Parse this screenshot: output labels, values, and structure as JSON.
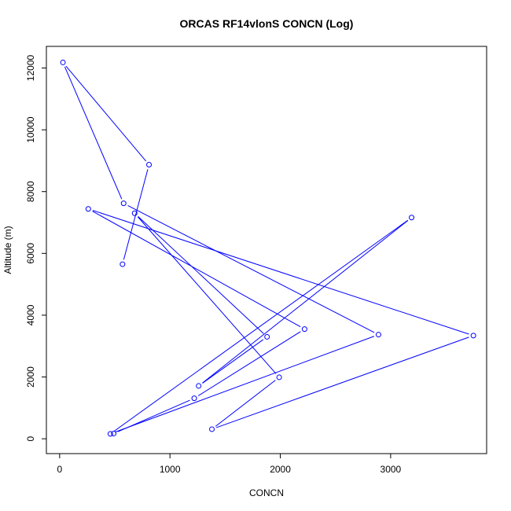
{
  "chart_data": {
    "type": "line",
    "title": "ORCAS RF14vlonS CONCN (Log)",
    "xlabel": "CONCN",
    "ylabel": "Altitude (m)",
    "xlim": [
      -120,
      3870
    ],
    "ylim": [
      -480,
      12700
    ],
    "xticks": [
      0,
      1000,
      2000,
      3000
    ],
    "yticks": [
      0,
      2000,
      4000,
      6000,
      8000,
      10000,
      12000
    ],
    "xtick_labels": [
      "0",
      "1000",
      "2000",
      "3000"
    ],
    "ytick_labels": [
      "0",
      "2000",
      "4000",
      "6000",
      "8000",
      "10000",
      "12000"
    ],
    "grid": false,
    "markers": "open-circle",
    "series": [
      {
        "color": "#0000ff",
        "points": [
          {
            "x": 570,
            "y": 5650
          },
          {
            "x": 810,
            "y": 8870
          },
          {
            "x": 30,
            "y": 12180
          },
          {
            "x": 580,
            "y": 7620
          },
          {
            "x": 2890,
            "y": 3370
          },
          {
            "x": 460,
            "y": 160
          },
          {
            "x": 3190,
            "y": 7160
          },
          {
            "x": 1260,
            "y": 1710
          },
          {
            "x": 1880,
            "y": 3300
          },
          {
            "x": 680,
            "y": 7300
          },
          {
            "x": 1990,
            "y": 1990
          },
          {
            "x": 1380,
            "y": 310
          },
          {
            "x": 3750,
            "y": 3340
          },
          {
            "x": 260,
            "y": 7440
          },
          {
            "x": 2220,
            "y": 3550
          },
          {
            "x": 1220,
            "y": 1310
          },
          {
            "x": 490,
            "y": 170
          }
        ]
      }
    ]
  }
}
